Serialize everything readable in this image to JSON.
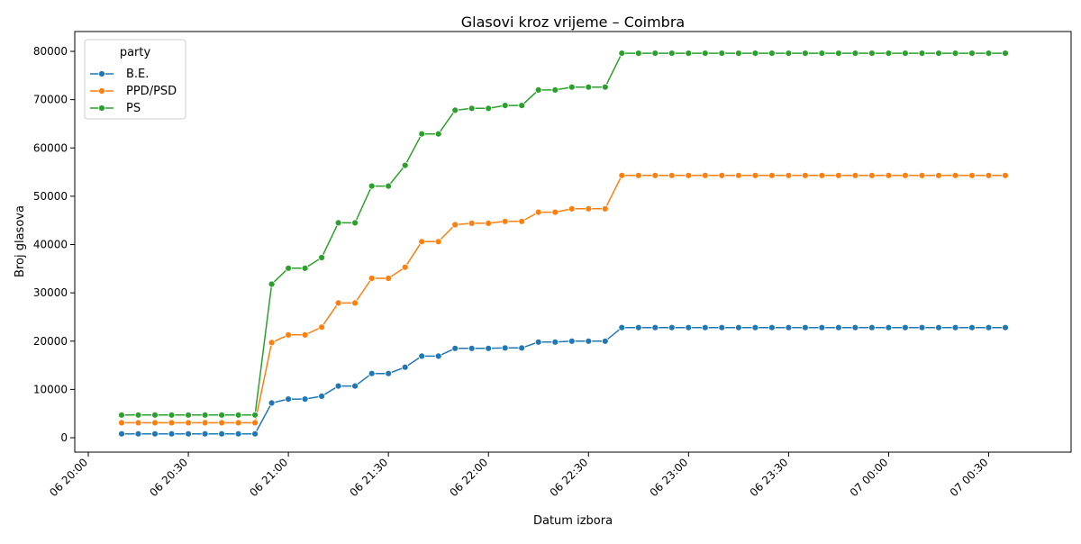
{
  "chart_data": {
    "type": "line",
    "title": "Glasovi kroz vrijeme – Coimbra",
    "xlabel": "Datum izbora",
    "ylabel": "Broj glasova",
    "xlim": [
      "06 20:00",
      "07 00:35"
    ],
    "ylim": [
      0,
      80000
    ],
    "grid": false,
    "legend": {
      "title": "party",
      "position": "top-left"
    },
    "x_ticks": [
      "06 20:00",
      "06 20:30",
      "06 21:00",
      "06 21:30",
      "06 22:00",
      "06 22:30",
      "06 23:00",
      "06 23:30",
      "07 00:00",
      "07 00:30"
    ],
    "y_ticks": [
      0,
      10000,
      20000,
      30000,
      40000,
      50000,
      60000,
      70000,
      80000
    ],
    "x": [
      "06 20:10",
      "06 20:15",
      "06 20:20",
      "06 20:25",
      "06 20:30",
      "06 20:35",
      "06 20:40",
      "06 20:45",
      "06 20:50",
      "06 20:55",
      "06 21:00",
      "06 21:05",
      "06 21:10",
      "06 21:15",
      "06 21:20",
      "06 21:25",
      "06 21:30",
      "06 21:35",
      "06 21:40",
      "06 21:45",
      "06 21:50",
      "06 21:55",
      "06 22:00",
      "06 22:05",
      "06 22:10",
      "06 22:15",
      "06 22:20",
      "06 22:25",
      "06 22:30",
      "06 22:35",
      "06 22:40",
      "06 22:45",
      "06 22:50",
      "06 22:55",
      "06 23:00",
      "06 23:05",
      "06 23:10",
      "06 23:15",
      "06 23:20",
      "06 23:25",
      "06 23:30",
      "06 23:35",
      "06 23:40",
      "06 23:45",
      "06 23:50",
      "06 23:55",
      "07 00:00",
      "07 00:05",
      "07 00:10",
      "07 00:15",
      "07 00:20",
      "07 00:25",
      "07 00:30",
      "07 00:35"
    ],
    "series": [
      {
        "name": "B.E.",
        "color": "#1f77b4",
        "values": [
          800,
          800,
          800,
          800,
          800,
          800,
          800,
          800,
          800,
          7200,
          8000,
          8000,
          8600,
          10700,
          10700,
          13300,
          13300,
          14600,
          16900,
          16900,
          18500,
          18500,
          18500,
          18600,
          18600,
          19800,
          19800,
          20000,
          20000,
          20000,
          22800,
          22800,
          22800,
          22800,
          22800,
          22800,
          22800,
          22800,
          22800,
          22800,
          22800,
          22800,
          22800,
          22800,
          22800,
          22800,
          22800,
          22800,
          22800,
          22800,
          22800,
          22800,
          22800,
          22800
        ]
      },
      {
        "name": "PPD/PSD",
        "color": "#ff7f0e",
        "values": [
          3100,
          3100,
          3100,
          3100,
          3100,
          3100,
          3100,
          3100,
          3100,
          19700,
          21300,
          21300,
          22900,
          27900,
          27900,
          33000,
          33000,
          35300,
          40600,
          40600,
          44100,
          44400,
          44400,
          44800,
          44800,
          46700,
          46700,
          47400,
          47400,
          47400,
          54300,
          54300,
          54300,
          54300,
          54300,
          54300,
          54300,
          54300,
          54300,
          54300,
          54300,
          54300,
          54300,
          54300,
          54300,
          54300,
          54300,
          54300,
          54300,
          54300,
          54300,
          54300,
          54300,
          54300
        ]
      },
      {
        "name": "PS",
        "color": "#2ca02c",
        "values": [
          4700,
          4700,
          4700,
          4700,
          4700,
          4700,
          4700,
          4700,
          4700,
          31800,
          35100,
          35100,
          37300,
          44500,
          44500,
          52100,
          52100,
          56400,
          62900,
          62900,
          67800,
          68200,
          68200,
          68800,
          68800,
          72000,
          72000,
          72600,
          72600,
          72600,
          79600,
          79600,
          79600,
          79600,
          79600,
          79600,
          79600,
          79600,
          79600,
          79600,
          79600,
          79600,
          79600,
          79600,
          79600,
          79600,
          79600,
          79600,
          79600,
          79600,
          79600,
          79600,
          79600,
          79600
        ]
      }
    ]
  }
}
